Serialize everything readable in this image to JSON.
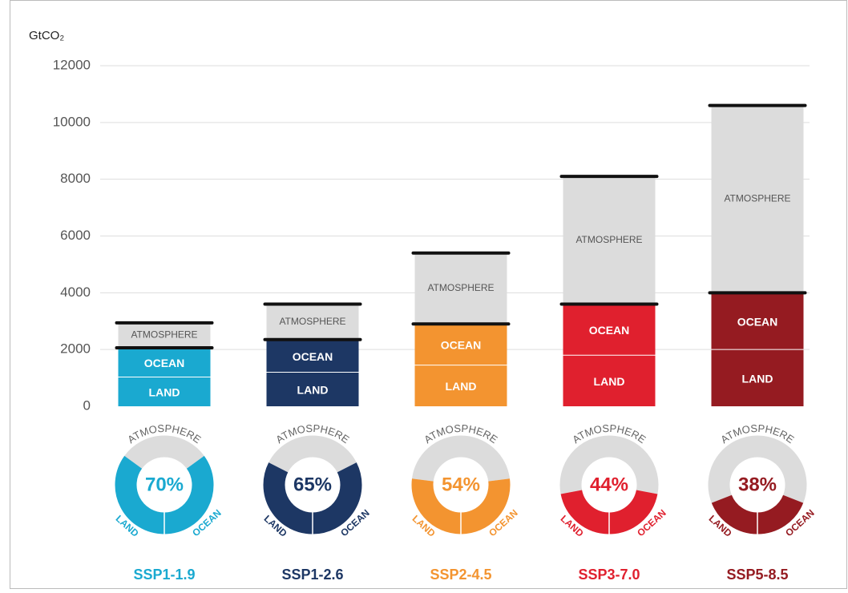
{
  "chart_data": [
    {
      "type": "bar",
      "stacked": true,
      "y_label": "GtCO₂",
      "categories": [
        "SSP1-1.9",
        "SSP1-2.6",
        "SSP2-4.5",
        "SSP3-7.0",
        "SSP5-8.5"
      ],
      "colors": [
        "#1aa9d0",
        "#1d3764",
        "#f39430",
        "#e0202e",
        "#951b21"
      ],
      "series": [
        {
          "name": "LAND",
          "values": [
            1030,
            1200,
            1450,
            1800,
            2000
          ]
        },
        {
          "name": "OCEAN",
          "values": [
            1030,
            1150,
            1450,
            1800,
            2000
          ]
        },
        {
          "name": "ATMOSPHERE",
          "color": "#dcdcdc",
          "values": [
            880,
            1250,
            2500,
            4500,
            6600
          ]
        }
      ],
      "ylim": [
        0,
        12000
      ],
      "yticks": [
        0,
        2000,
        4000,
        6000,
        8000,
        10000,
        12000
      ],
      "grid": true
    },
    {
      "type": "donut",
      "values": [
        70,
        65,
        54,
        44,
        38
      ],
      "value_labels": [
        "70%",
        "65%",
        "54%",
        "44%",
        "38%"
      ]
    }
  ]
}
